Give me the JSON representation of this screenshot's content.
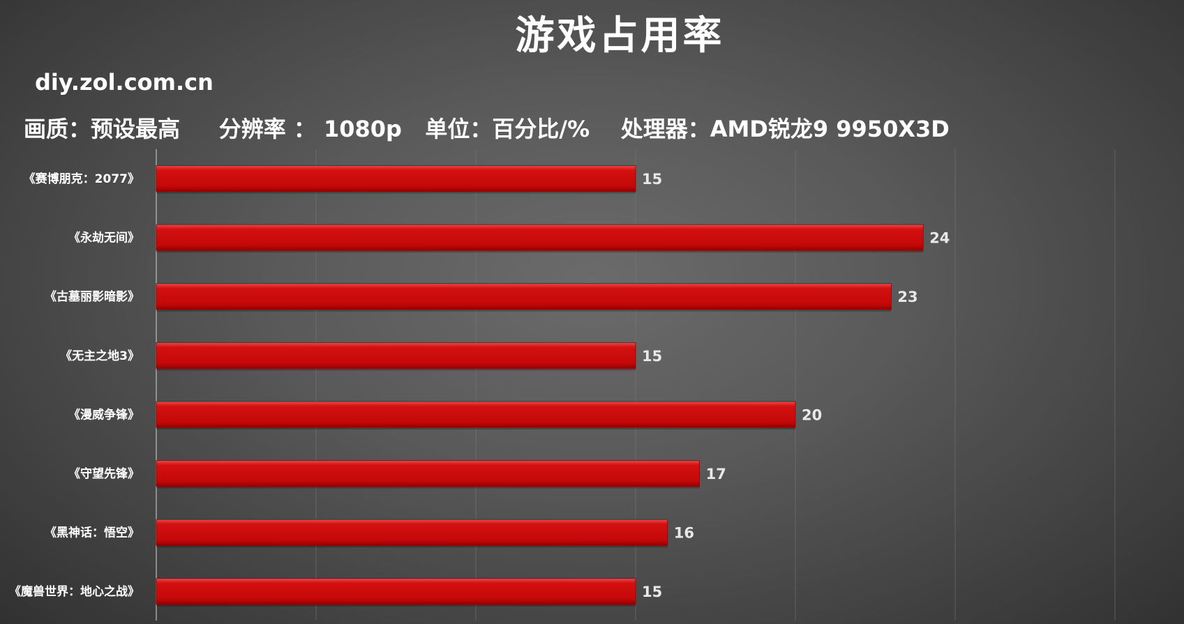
{
  "header": {
    "title": "游戏占用率",
    "watermark": "diy.zol.com.cn",
    "subtitle": "画质：预设最高     分辨率 ： 1080p   单位：百分比/%    处理器：AMD锐龙9 9950X3D"
  },
  "colors": {
    "bar": "#cc0a0a",
    "bar_highlight": "#e83a3a",
    "bar_shadow": "#8a0505",
    "grid": "#7a7a7a",
    "axis": "#bdbdbd"
  },
  "chart_data": {
    "type": "bar",
    "orientation": "horizontal",
    "categories": [
      "《赛博朋克：2077》",
      "《永劫无间》",
      "《古墓丽影暗影》",
      "《无主之地3》",
      "《漫威争锋》",
      "《守望先锋》",
      "《黑神话：悟空》",
      "《魔兽世界：地心之战》"
    ],
    "values": [
      15,
      24,
      23,
      15,
      20,
      17,
      16,
      15
    ],
    "xlim": [
      0,
      30
    ],
    "grid": true,
    "data_labels": true
  }
}
